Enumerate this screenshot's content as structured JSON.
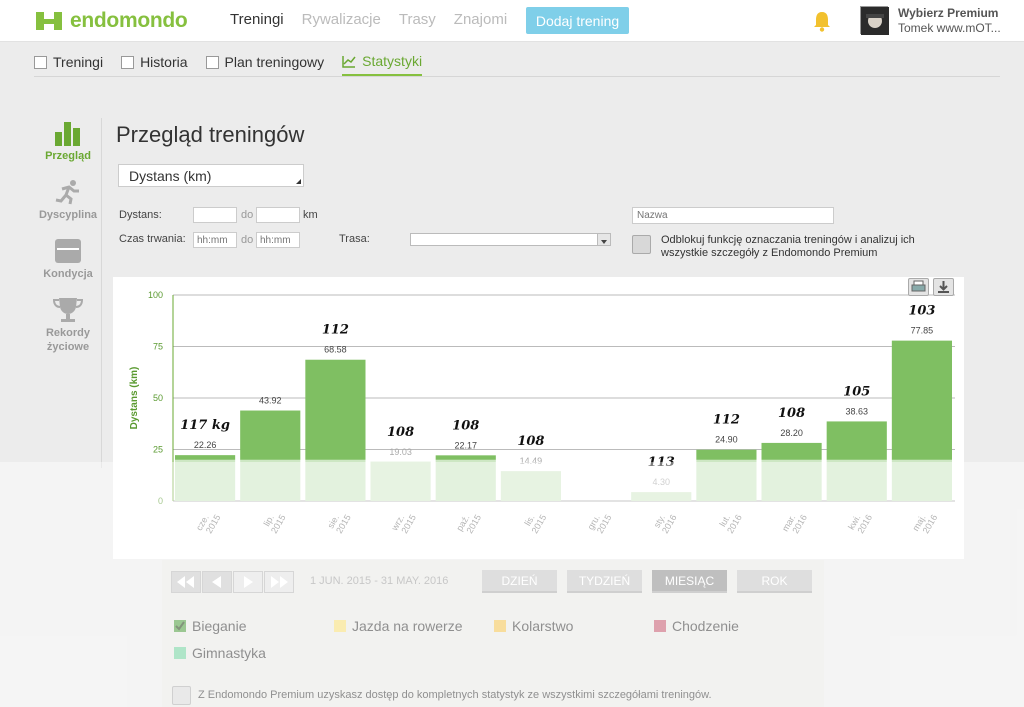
{
  "header": {
    "brand": "endomondo",
    "nav": [
      "Treningi",
      "Rywalizacje",
      "Trasy",
      "Znajomi"
    ],
    "add_button": "Dodaj trening",
    "premium_label": "Wybierz Premium",
    "user_name": "Tomek www.mOT..."
  },
  "subnav": [
    "Treningi",
    "Historia",
    "Plan treningowy",
    "Statystyki"
  ],
  "sidebar": [
    "Przegląd",
    "Dyscyplina",
    "Kondycja",
    "Rekordy życiowe"
  ],
  "page_title": "Przegląd treningów",
  "metric_select": "Dystans (km)",
  "filters": {
    "distance_label": "Dystans:",
    "to_label": "do",
    "km_unit": "km",
    "duration_label": "Czas trwania:",
    "time_placeholder": "hh:mm",
    "route_label": "Trasa:",
    "name_placeholder": "Nazwa",
    "unlock_text": "Odblokuj funkcję oznaczania treningów i analizuj ich wszystkie szczegóły z Endomondo Premium"
  },
  "chart_data": {
    "type": "bar",
    "ylabel": "Dystans (km)",
    "ylim": [
      0,
      100
    ],
    "yticks": [
      0,
      25,
      50,
      75,
      100
    ],
    "categories": [
      "cze. 2015",
      "lip. 2015",
      "sie. 2015",
      "wrz. 2015",
      "paź. 2015",
      "lis. 2015",
      "gru. 2015",
      "sty. 2016",
      "lut. 2016",
      "mar. 2016",
      "kwi. 2016",
      "maj. 2016"
    ],
    "values": [
      22.26,
      43.92,
      68.58,
      19.03,
      22.17,
      14.49,
      0,
      4.3,
      24.9,
      28.2,
      38.63,
      77.85
    ],
    "value_labels": [
      "22.26",
      "43.92",
      "68.58",
      "19.03",
      "22.17",
      "14.49",
      "",
      "4.30",
      "24.90",
      "28.20",
      "38.63",
      "77.85"
    ],
    "weight_annotations": [
      "117 kg",
      "",
      "112",
      "108",
      "108",
      "108",
      "",
      "113",
      "112",
      "108",
      "105",
      "103"
    ],
    "grid": true
  },
  "controls": {
    "date_range": "1 JUN. 2015  -  31 MAY. 2016",
    "ranges": [
      "DZIEŃ",
      "TYDZIEŃ",
      "MIESIĄC",
      "ROK"
    ],
    "active_range": "MIESIĄC"
  },
  "legend": [
    {
      "label": "Bieganie",
      "color": "#4a9a3a",
      "checked": true
    },
    {
      "label": "Jazda na rowerze",
      "color": "#f6dc72"
    },
    {
      "label": "Kolarstwo",
      "color": "#f2c14b"
    },
    {
      "label": "Chodzenie",
      "color": "#c4546b"
    },
    {
      "label": "Gimnastyka",
      "color": "#6dcf9b"
    }
  ],
  "footnote": "Z Endomondo Premium uzyskasz dostęp do kompletnych statystyk ze wszystkimi szczegółami treningów.",
  "colors": {
    "accent": "#86c03f",
    "bar": "#7fbf62",
    "bar_bottom": "#d6ecd0"
  }
}
